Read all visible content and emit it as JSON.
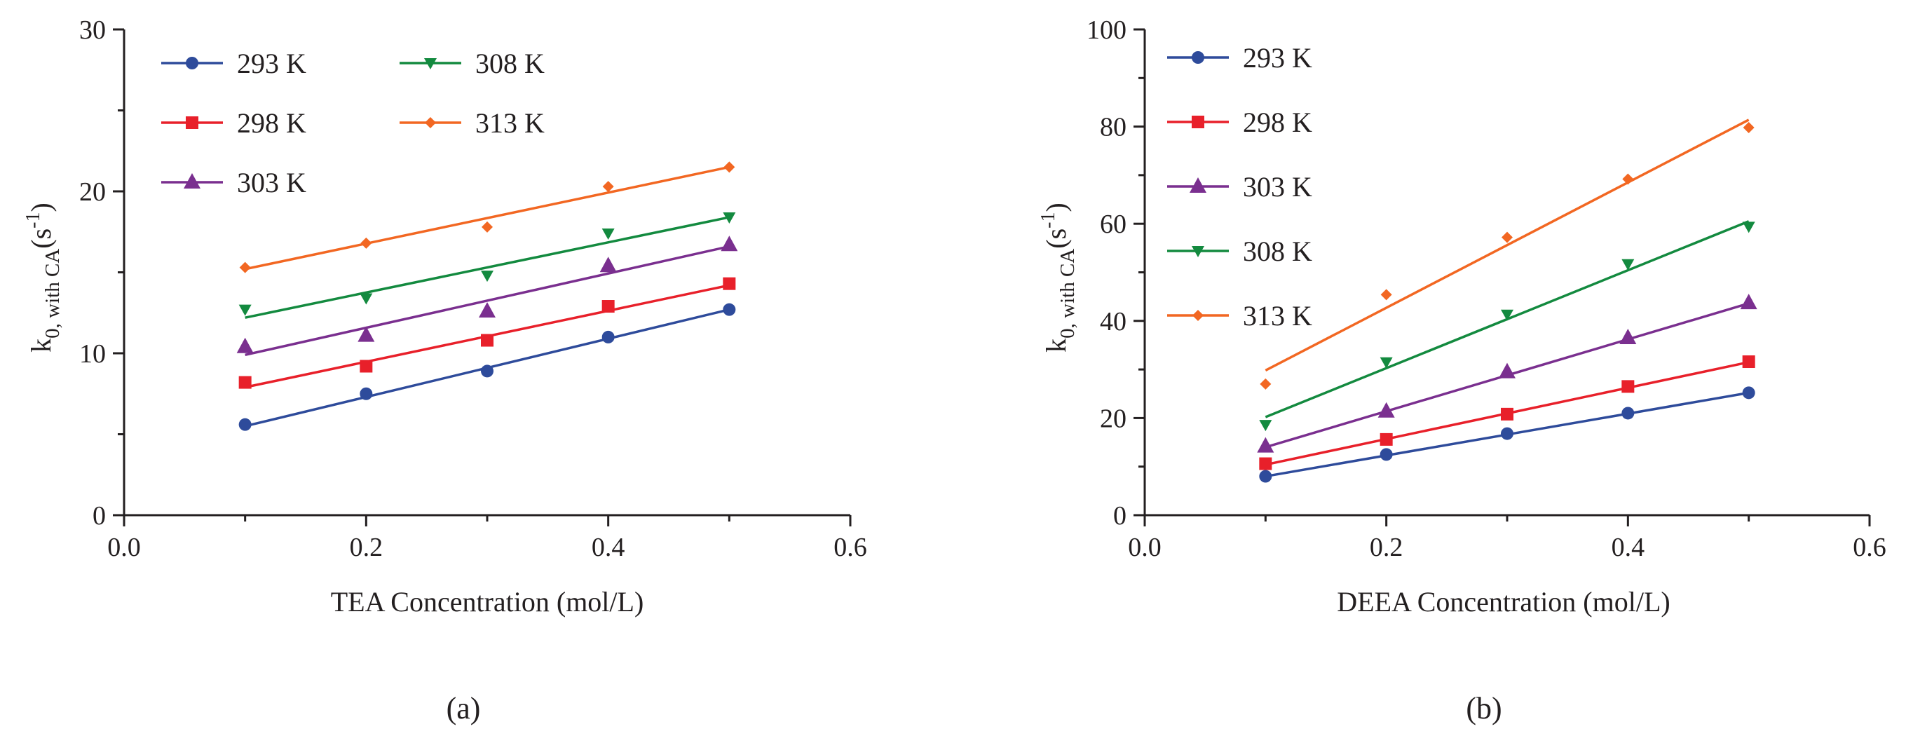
{
  "chart_data": [
    {
      "type": "scatter",
      "panel_label": "(a)",
      "xlabel": "TEA Concentration (mol/L)",
      "ylabel": {
        "main": "k",
        "sub": "0, with CA",
        "unit_open": "(s",
        "unit_sup": "-1",
        "unit_close": ")"
      },
      "xlim": [
        0.0,
        0.6
      ],
      "ylim": [
        0,
        30
      ],
      "xticks": [
        0.0,
        0.2,
        0.4,
        0.6
      ],
      "xtick_labels": [
        "0.0",
        "0.2",
        "0.4",
        "0.6"
      ],
      "yticks": [
        0,
        10,
        20,
        30
      ],
      "ytick_labels": [
        "0",
        "10",
        "20",
        "30"
      ],
      "x": [
        0.1,
        0.2,
        0.3,
        0.4,
        0.5
      ],
      "legend_layout": "two-column",
      "series": [
        {
          "name": "293 K",
          "color": "#2e4b9b",
          "marker": "circle",
          "values": [
            5.6,
            7.5,
            8.9,
            11.0,
            12.7
          ],
          "fit": [
            5.5,
            12.7
          ]
        },
        {
          "name": "298 K",
          "color": "#e8202a",
          "marker": "square",
          "values": [
            8.2,
            9.2,
            10.8,
            12.9,
            14.3
          ],
          "fit": [
            7.9,
            14.2
          ]
        },
        {
          "name": "303 K",
          "color": "#7a2f8f",
          "marker": "triangle",
          "values": [
            10.4,
            11.1,
            12.6,
            15.4,
            16.7
          ],
          "fit": [
            9.9,
            16.6
          ]
        },
        {
          "name": "308 K",
          "color": "#138a3f",
          "marker": "triangle-down",
          "values": [
            12.7,
            13.4,
            14.8,
            17.4,
            18.4
          ],
          "fit": [
            12.2,
            18.4
          ]
        },
        {
          "name": "313 K",
          "color": "#f26722",
          "marker": "diamond",
          "values": [
            15.3,
            16.8,
            17.8,
            20.3,
            21.5
          ],
          "fit": [
            15.2,
            21.5
          ]
        }
      ]
    },
    {
      "type": "scatter",
      "panel_label": "(b)",
      "xlabel": "DEEA Concentration (mol/L)",
      "ylabel": {
        "main": "k",
        "sub": "0, with CA",
        "unit_open": "(s",
        "unit_sup": "-1",
        "unit_close": ")"
      },
      "xlim": [
        0.0,
        0.6
      ],
      "ylim": [
        0,
        100
      ],
      "xticks": [
        0.0,
        0.2,
        0.4,
        0.6
      ],
      "xtick_labels": [
        "0.0",
        "0.2",
        "0.4",
        "0.6"
      ],
      "yticks": [
        0,
        20,
        40,
        60,
        80,
        100
      ],
      "ytick_labels": [
        "0",
        "20",
        "40",
        "60",
        "80",
        "100"
      ],
      "x": [
        0.1,
        0.2,
        0.3,
        0.4,
        0.5
      ],
      "legend_layout": "one-column",
      "series": [
        {
          "name": "293 K",
          "color": "#2e4b9b",
          "marker": "circle",
          "values": [
            8.0,
            12.5,
            16.8,
            21.0,
            25.2
          ],
          "fit": [
            8.0,
            25.2
          ]
        },
        {
          "name": "298 K",
          "color": "#e8202a",
          "marker": "square",
          "values": [
            10.6,
            15.6,
            20.8,
            26.5,
            31.6
          ],
          "fit": [
            10.4,
            31.5
          ]
        },
        {
          "name": "303 K",
          "color": "#7a2f8f",
          "marker": "triangle",
          "values": [
            14.2,
            21.4,
            29.5,
            36.5,
            43.7
          ],
          "fit": [
            14.0,
            43.6
          ]
        },
        {
          "name": "308 K",
          "color": "#138a3f",
          "marker": "triangle-down",
          "values": [
            18.6,
            31.5,
            41.3,
            51.7,
            59.4
          ],
          "fit": [
            20.2,
            60.5
          ]
        },
        {
          "name": "313 K",
          "color": "#f26722",
          "marker": "diamond",
          "values": [
            27.0,
            45.4,
            57.2,
            69.2,
            79.8
          ],
          "fit": [
            29.8,
            81.4
          ]
        }
      ]
    }
  ]
}
